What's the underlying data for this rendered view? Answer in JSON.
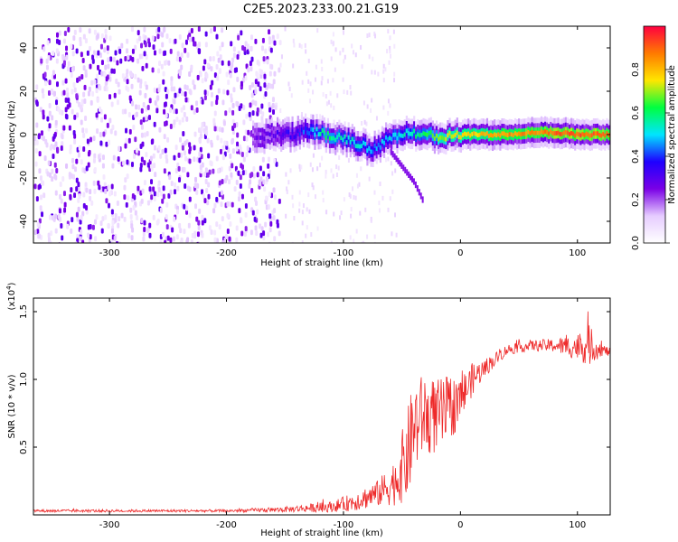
{
  "title": "C2E5.2023.233.00.21.G19",
  "chart_data": [
    {
      "type": "heatmap",
      "xlabel": "Height of straight line (km)",
      "ylabel": "Frequency (Hz)",
      "xlim": [
        -365,
        128
      ],
      "ylim": [
        -50,
        50
      ],
      "x_ticks": [
        -300,
        -200,
        -100,
        0,
        100
      ],
      "y_ticks": [
        -40,
        -20,
        0,
        20,
        40
      ],
      "colorbar": {
        "label": "Normalized spectral amplitude",
        "range": [
          0,
          1
        ],
        "ticks": [
          0.0,
          0.2,
          0.4,
          0.6,
          0.8
        ],
        "tick_labels": [
          "0.0",
          "0.2",
          "0.4",
          "0.6",
          "0.8"
        ],
        "colormap": [
          "#ffffff",
          "#e6ccff",
          "#7a00e6",
          "#1e00ff",
          "#00e5ff",
          "#00ff40",
          "#ffe600",
          "#ff7a00",
          "#ff0040"
        ]
      },
      "noise_region_x": [
        -365,
        -155
      ],
      "ridge": {
        "x": [
          -175,
          -160,
          -145,
          -130,
          -115,
          -100,
          -85,
          -75,
          -60,
          -45,
          -30,
          -15,
          0,
          20,
          40,
          60,
          80,
          100,
          125
        ],
        "freq": [
          -1,
          0,
          0,
          2,
          0,
          -2,
          -5,
          -7,
          -1,
          1,
          0,
          -1,
          0,
          0,
          0,
          1,
          1,
          0,
          0
        ],
        "peak_amplitude": [
          0.25,
          0.3,
          0.35,
          0.45,
          0.6,
          0.55,
          0.5,
          0.45,
          0.5,
          0.55,
          0.6,
          0.7,
          0.75,
          0.8,
          0.85,
          0.85,
          0.9,
          0.9,
          0.9
        ]
      },
      "branch": {
        "x": [
          -60,
          -50,
          -40,
          -33
        ],
        "freq": [
          -8,
          -15,
          -22,
          -30
        ]
      }
    },
    {
      "type": "line",
      "xlabel": "Height of straight line (km)",
      "ylabel": "SNR (10 * v/v)",
      "y_multiplier_label": "(x10",
      "y_multiplier_exp": "4",
      "y_multiplier_close": ")",
      "xlim": [
        -365,
        128
      ],
      "ylim": [
        0,
        1.6
      ],
      "x_ticks": [
        -300,
        -200,
        -100,
        0,
        100
      ],
      "y_ticks": [
        0.5,
        1.0,
        1.5
      ],
      "y_tick_labels": [
        "0.5",
        "1.0",
        "1.5"
      ],
      "color": "#ee2a2a",
      "series": [
        {
          "x": [
            -365,
            -300,
            -250,
            -200,
            -150,
            -110,
            -90,
            -70,
            -55,
            -45,
            -40,
            -30,
            -20,
            -10,
            0,
            10,
            20,
            30,
            40,
            60,
            80,
            100,
            110,
            120,
            128
          ],
          "values": [
            0.03,
            0.03,
            0.03,
            0.03,
            0.04,
            0.06,
            0.1,
            0.16,
            0.25,
            0.45,
            0.65,
            0.75,
            0.72,
            0.78,
            0.85,
            1.0,
            1.08,
            1.15,
            1.22,
            1.25,
            1.25,
            1.24,
            1.25,
            1.22,
            1.2
          ],
          "noise": [
            0.01,
            0.01,
            0.01,
            0.01,
            0.02,
            0.04,
            0.07,
            0.1,
            0.18,
            0.35,
            0.35,
            0.3,
            0.28,
            0.25,
            0.18,
            0.12,
            0.07,
            0.05,
            0.04,
            0.04,
            0.05,
            0.1,
            0.15,
            0.05,
            0.03
          ]
        }
      ]
    }
  ]
}
